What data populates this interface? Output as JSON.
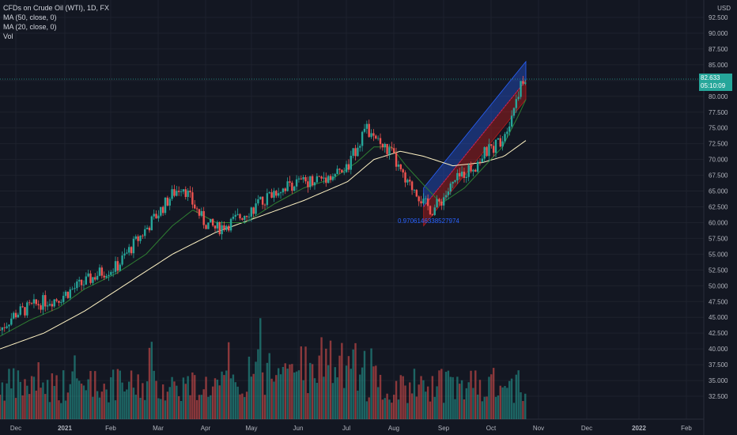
{
  "legend": {
    "symbol": "CFDs on Crude Oil (WTI), 1D, FX",
    "ma50": "MA (50, close, 0)",
    "ma20": "MA (20, close, 0)",
    "vol": "Vol"
  },
  "currency": "USD",
  "last_price": "82.633",
  "countdown": "05:10:09",
  "channel_label": "0.9706146338527974",
  "colors": {
    "up": "#26a69a",
    "down": "#ef5350",
    "ma50": "#fff3c4",
    "ma20": "#2e7d32",
    "channel_upper": "#2962ff",
    "channel_lower": "#b71c1c",
    "label": "#2962ff"
  },
  "chart_data": {
    "type": "candlestick",
    "y_ticks": [
      "92.500",
      "90.000",
      "87.500",
      "85.000",
      "82.500",
      "80.000",
      "77.500",
      "75.000",
      "72.500",
      "70.000",
      "67.500",
      "65.000",
      "62.500",
      "60.000",
      "57.500",
      "55.000",
      "52.500",
      "50.000",
      "47.500",
      "45.000",
      "42.500",
      "40.000",
      "37.500",
      "35.000",
      "32.500"
    ],
    "x_ticks": [
      "Dec",
      "2021",
      "Feb",
      "Mar",
      "Apr",
      "May",
      "Jun",
      "Jul",
      "Aug",
      "Sep",
      "Oct",
      "Nov",
      "Dec",
      "2022",
      "Feb"
    ],
    "ylim": [
      31,
      93
    ],
    "close_path": [
      [
        0,
        43
      ],
      [
        10,
        45.5
      ],
      [
        20,
        46.5
      ],
      [
        30,
        47.5
      ],
      [
        40,
        48
      ],
      [
        50,
        49.5
      ],
      [
        58,
        50.5
      ],
      [
        68,
        52
      ],
      [
        80,
        53
      ],
      [
        88,
        55.5
      ],
      [
        100,
        59
      ],
      [
        110,
        62
      ],
      [
        118,
        64.5
      ],
      [
        125,
        66
      ],
      [
        132,
        63
      ],
      [
        140,
        60
      ],
      [
        148,
        59
      ],
      [
        158,
        60
      ],
      [
        168,
        61.5
      ],
      [
        178,
        63
      ],
      [
        188,
        65
      ],
      [
        198,
        66
      ],
      [
        208,
        66.5
      ],
      [
        218,
        67
      ],
      [
        228,
        67.5
      ],
      [
        238,
        68.5
      ],
      [
        244,
        72
      ],
      [
        250,
        75
      ],
      [
        256,
        73
      ],
      [
        262,
        72
      ],
      [
        268,
        71
      ],
      [
        274,
        68
      ],
      [
        278,
        66
      ],
      [
        284,
        65.5
      ],
      [
        290,
        63
      ],
      [
        296,
        62
      ],
      [
        302,
        63.5
      ],
      [
        310,
        66
      ],
      [
        318,
        68
      ],
      [
        325,
        69
      ],
      [
        332,
        71
      ],
      [
        338,
        72
      ],
      [
        344,
        73.5
      ],
      [
        350,
        77
      ],
      [
        355,
        81
      ],
      [
        360,
        82.6
      ]
    ],
    "ma20_path": [
      [
        0,
        42
      ],
      [
        20,
        44.5
      ],
      [
        40,
        46.5
      ],
      [
        58,
        49.5
      ],
      [
        80,
        52
      ],
      [
        100,
        55
      ],
      [
        118,
        59.5
      ],
      [
        132,
        62
      ],
      [
        148,
        60
      ],
      [
        168,
        60
      ],
      [
        188,
        63
      ],
      [
        208,
        65.5
      ],
      [
        228,
        67
      ],
      [
        244,
        69.5
      ],
      [
        256,
        72
      ],
      [
        268,
        72
      ],
      [
        278,
        69
      ],
      [
        290,
        66
      ],
      [
        302,
        63
      ],
      [
        318,
        65.5
      ],
      [
        332,
        69
      ],
      [
        344,
        72
      ],
      [
        355,
        77
      ],
      [
        360,
        79.5
      ]
    ],
    "ma50_path": [
      [
        0,
        40
      ],
      [
        30,
        42.5
      ],
      [
        58,
        46
      ],
      [
        88,
        50.5
      ],
      [
        118,
        55
      ],
      [
        148,
        58.5
      ],
      [
        178,
        61
      ],
      [
        208,
        63.5
      ],
      [
        238,
        66.5
      ],
      [
        256,
        70
      ],
      [
        274,
        71.3
      ],
      [
        290,
        70.5
      ],
      [
        310,
        69
      ],
      [
        330,
        69.5
      ],
      [
        345,
        70.5
      ],
      [
        360,
        73
      ]
    ],
    "channel": {
      "start_x": 290,
      "end_x": 360,
      "start_price": 62.5,
      "end_price": 82.5,
      "half_width": 3
    }
  }
}
